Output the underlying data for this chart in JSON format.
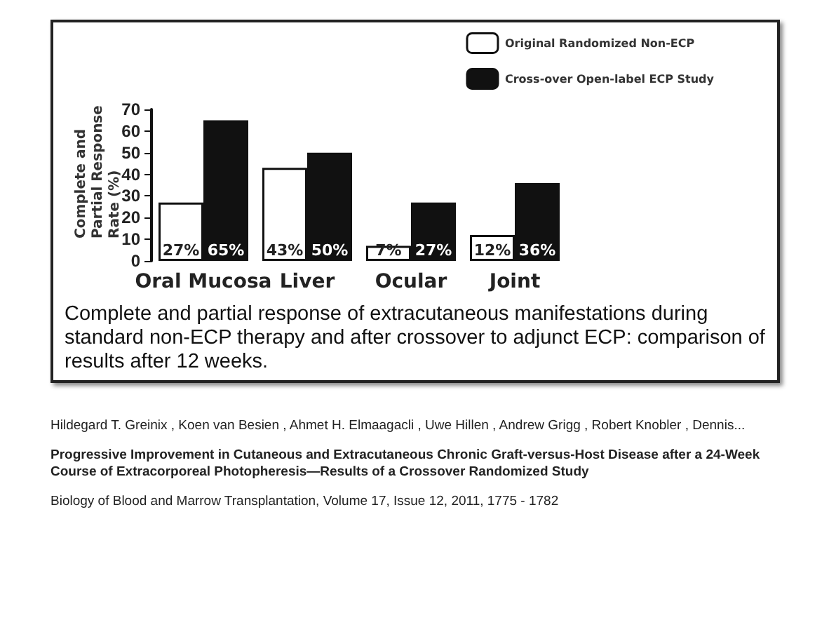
{
  "chart_data": {
    "type": "bar",
    "categories": [
      "Oral Mucosa",
      "Liver",
      "Ocular",
      "Joint"
    ],
    "ylabel": "Complete and Partial Response Rate (%)",
    "series": [
      {
        "name": "Original Randomized Non-ECP",
        "color": "#ffffff",
        "values": [
          27,
          43,
          7,
          12
        ],
        "value_labels": [
          "27%",
          "43%",
          "7%",
          "12%"
        ]
      },
      {
        "name": "Cross-over Open-label ECP Study",
        "color": "#111111",
        "values": [
          65,
          50,
          27,
          36
        ],
        "value_labels": [
          "65%",
          "50%",
          "27%",
          "36%"
        ]
      }
    ],
    "ylim": [
      0,
      70
    ],
    "yticks": [
      0,
      10,
      20,
      30,
      40,
      50,
      60,
      70
    ],
    "grid": false,
    "legend": "top right",
    "annotations": [
      "Complete and partial response of extracutaneous manifestations during standard non-ECP therapy and after crossover to adjunct ECP: comparison of results after 12 weeks.",
      "Hildegard T.  Greinix , Koen  van Besien , Ahmet H.  Elmaagacli , Uwe  Hillen , Andrew  Grigg , Robert  Knobler , Dennis...",
      "Progressive Improvement in Cutaneous and Extracutaneous Chronic Graft-versus-Host Disease after a 24-Week Course of Extracorporeal Photopheresis—Results of a Crossover Randomized Study",
      "Biology of Blood and Marrow Transplantation, Volume 17, Issue 12, 2011, 1775 - 1782"
    ]
  }
}
